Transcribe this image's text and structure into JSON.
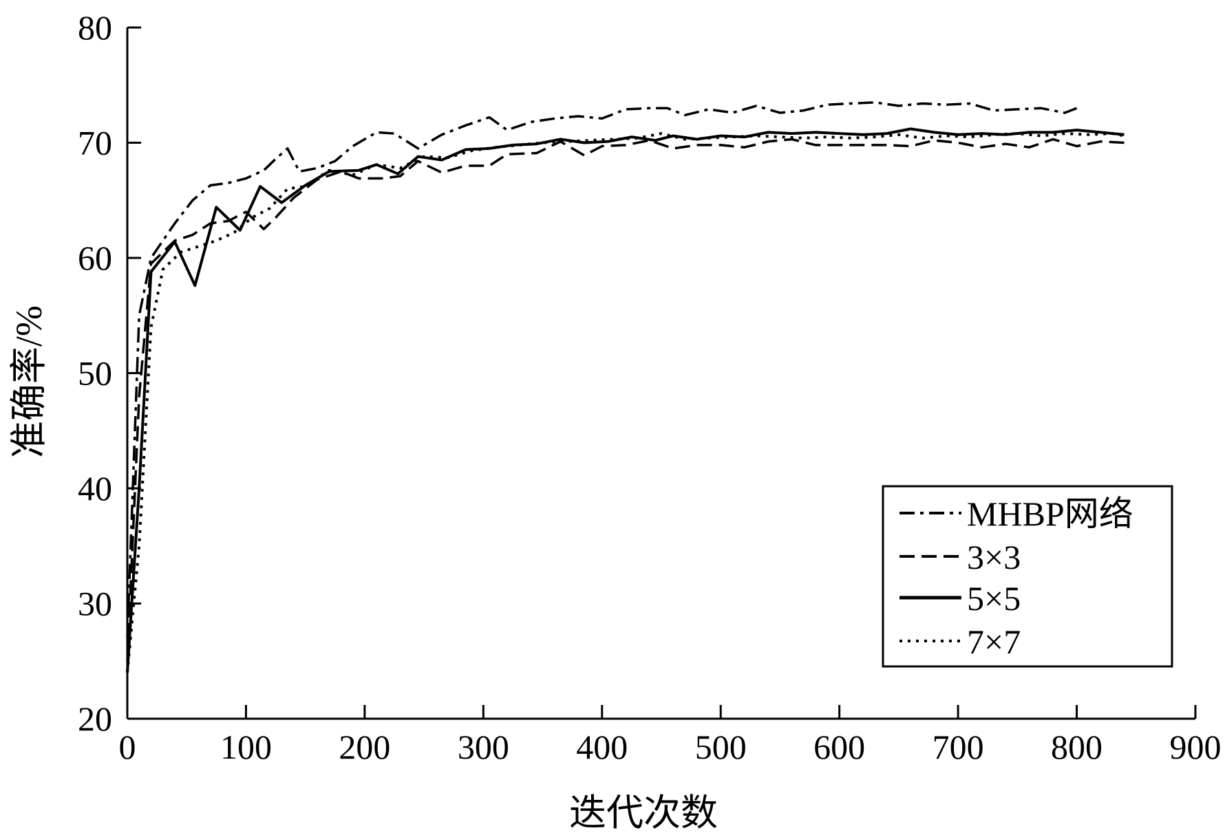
{
  "chart_data": {
    "type": "line",
    "title": "",
    "xlabel": "迭代次数",
    "ylabel": "准确率/%",
    "xlim": [
      0,
      900
    ],
    "ylim": [
      20,
      80
    ],
    "xticks": [
      0,
      100,
      200,
      300,
      400,
      500,
      600,
      700,
      800,
      900
    ],
    "yticks": [
      20,
      30,
      40,
      50,
      60,
      70,
      80
    ],
    "grid": false,
    "legend_position": "bottom-right",
    "colors": {
      "line": "#000000",
      "axis": "#000000",
      "background": "#ffffff"
    },
    "series": [
      {
        "name": "MHBP网络",
        "style": "dashdot",
        "x": [
          0,
          10,
          20,
          30,
          40,
          55,
          70,
          85,
          100,
          115,
          125,
          135,
          145,
          160,
          175,
          190,
          210,
          225,
          245,
          265,
          285,
          305,
          320,
          340,
          360,
          380,
          400,
          420,
          440,
          455,
          470,
          490,
          510,
          530,
          550,
          570,
          590,
          610,
          630,
          650,
          670,
          690,
          710,
          730,
          750,
          770,
          790,
          800
        ],
        "y": [
          27,
          55,
          60,
          61.5,
          63,
          65,
          66.3,
          66.5,
          66.9,
          67.6,
          68.6,
          69.5,
          67.5,
          67.8,
          68.4,
          69.7,
          70.9,
          70.8,
          69.5,
          70.7,
          71.5,
          72.2,
          71.1,
          71.8,
          72.1,
          72.3,
          72.1,
          72.9,
          73,
          73,
          72.4,
          72.9,
          72.6,
          73.2,
          72.6,
          72.8,
          73.3,
          73.4,
          73.5,
          73.2,
          73.4,
          73.3,
          73.4,
          72.8,
          72.9,
          73,
          72.6,
          73
        ]
      },
      {
        "name": "3×3",
        "style": "dashed",
        "x": [
          0,
          10,
          20,
          30,
          40,
          55,
          70,
          85,
          100,
          115,
          125,
          140,
          160,
          180,
          195,
          215,
          230,
          245,
          265,
          285,
          305,
          320,
          345,
          365,
          385,
          400,
          420,
          440,
          460,
          480,
          500,
          520,
          540,
          560,
          580,
          600,
          620,
          640,
          660,
          680,
          700,
          720,
          740,
          760,
          780,
          800,
          820,
          840
        ],
        "y": [
          25,
          48,
          59.5,
          60.5,
          61.5,
          62,
          63,
          63.2,
          64,
          62.5,
          63.5,
          65.2,
          66.8,
          67.5,
          66.9,
          66.9,
          67.1,
          68.4,
          67.4,
          68,
          68,
          69,
          69.1,
          70.1,
          68.9,
          69.7,
          69.8,
          70.2,
          69.5,
          69.8,
          69.8,
          69.6,
          70.1,
          70.3,
          69.8,
          69.8,
          69.8,
          69.8,
          69.7,
          70.2,
          70,
          69.6,
          69.9,
          69.6,
          70.3,
          69.7,
          70.1,
          70
        ]
      },
      {
        "name": "5×5",
        "style": "solid",
        "x": [
          0,
          10,
          20,
          40,
          57,
          75,
          95,
          112,
          130,
          150,
          170,
          195,
          210,
          228,
          245,
          265,
          285,
          305,
          325,
          345,
          365,
          385,
          405,
          425,
          445,
          460,
          480,
          500,
          520,
          540,
          560,
          580,
          600,
          620,
          640,
          660,
          680,
          700,
          720,
          740,
          760,
          780,
          800,
          820,
          840
        ],
        "y": [
          24,
          40,
          58.8,
          61.4,
          57.6,
          64.4,
          62.4,
          66.2,
          64.8,
          66.3,
          67.5,
          67.6,
          68.1,
          67.3,
          68.8,
          68.5,
          69.4,
          69.5,
          69.8,
          69.9,
          70.3,
          70,
          70.1,
          70.5,
          70.2,
          70.6,
          70.3,
          70.6,
          70.5,
          70.9,
          70.8,
          70.9,
          70.8,
          70.7,
          70.8,
          71.2,
          70.9,
          70.7,
          70.8,
          70.7,
          70.9,
          70.9,
          71.1,
          70.9,
          70.7
        ]
      },
      {
        "name": "7×7",
        "style": "dotted",
        "x": [
          0,
          10,
          20,
          30,
          45,
          60,
          75,
          90,
          105,
          120,
          135,
          150,
          170,
          190,
          210,
          230,
          250,
          270,
          290,
          310,
          330,
          350,
          370,
          390,
          410,
          430,
          450,
          470,
          490,
          510,
          530,
          550,
          570,
          590,
          610,
          630,
          650,
          670,
          690,
          710,
          730,
          750,
          770,
          790,
          810,
          830,
          840
        ],
        "y": [
          24,
          35,
          54,
          59,
          60.5,
          61,
          61.5,
          62.2,
          63.5,
          64.3,
          66,
          66.2,
          67.6,
          67.2,
          68.1,
          67.8,
          68.8,
          68.7,
          69.3,
          69.6,
          69.8,
          70,
          70.1,
          70.2,
          70.3,
          70.4,
          70.8,
          70.3,
          70.4,
          70.5,
          70.6,
          70.5,
          70.4,
          70.5,
          70.4,
          70.5,
          70.7,
          70.4,
          70.6,
          70.5,
          70.7,
          70.8,
          70.6,
          70.8,
          70.7,
          70.8,
          70.6
        ]
      }
    ]
  },
  "legend": {
    "items": [
      {
        "label": "MHBP网络",
        "style": "dashdot"
      },
      {
        "label": "3×3",
        "style": "dashed"
      },
      {
        "label": "5×5",
        "style": "solid"
      },
      {
        "label": "7×7",
        "style": "dotted"
      }
    ]
  }
}
